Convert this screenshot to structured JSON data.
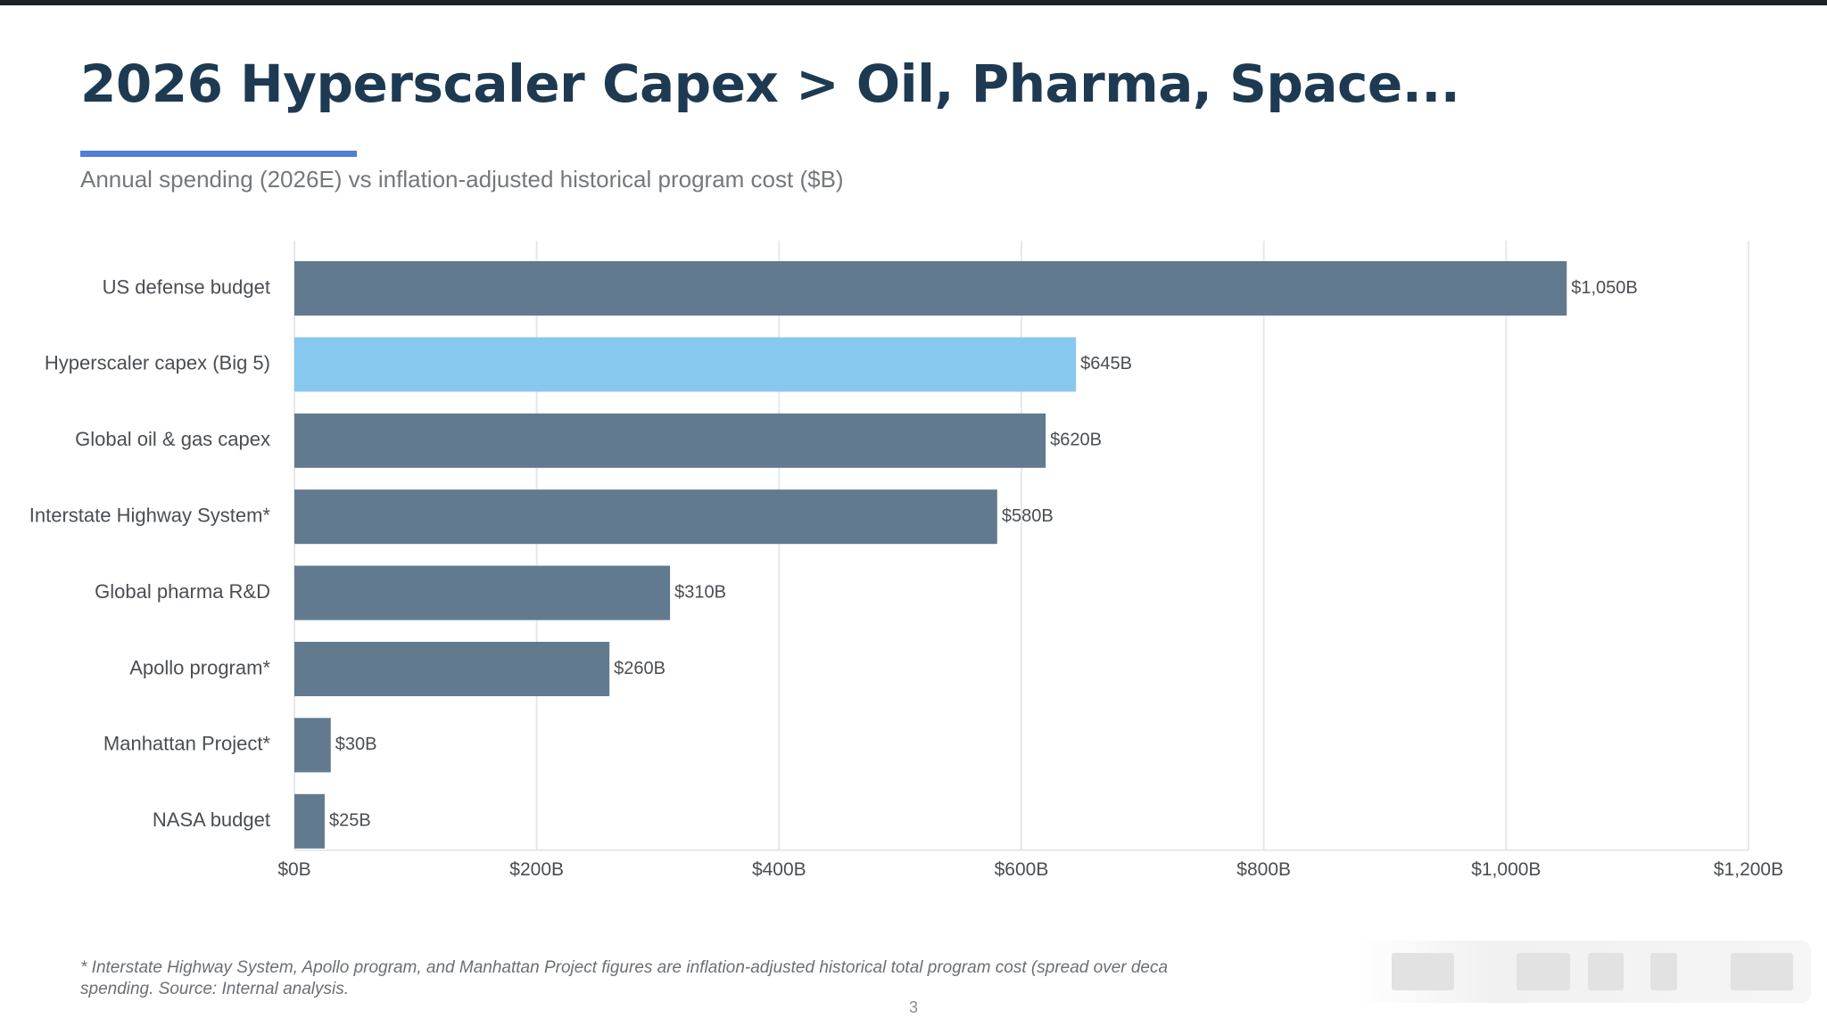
{
  "slide": {
    "title": "2026 Hyperscaler Capex > Oil, Pharma, Space...",
    "subtitle": "Annual spending (2026E) vs inflation-adjusted historical program cost ($B)",
    "footnote_line1": "* Interstate Highway System, Apollo program, and Manhattan Project figures are inflation-adjusted historical total program cost (spread over deca",
    "footnote_line2": "spending. Source: Internal analysis.",
    "page_number": "3"
  },
  "colors": {
    "title": "#1e3a52",
    "accent": "#4f7fd6",
    "bar_default": "#627a90",
    "bar_highlight": "#86c8ee",
    "grid": "#e6e8eb",
    "label": "#4a4e53"
  },
  "chart_data": {
    "type": "bar",
    "orientation": "horizontal",
    "categories": [
      "US defense budget",
      "Hyperscaler capex (Big 5)",
      "Global oil & gas capex",
      "Interstate Highway System*",
      "Global pharma R&D",
      "Apollo program*",
      "Manhattan Project*",
      "NASA budget"
    ],
    "values": [
      1050,
      645,
      620,
      580,
      310,
      260,
      30,
      25
    ],
    "value_labels": [
      "$1,050B",
      "$645B",
      "$620B",
      "$580B",
      "$310B",
      "$260B",
      "$30B",
      "$25B"
    ],
    "highlight_index": 1,
    "xlim": [
      0,
      1200
    ],
    "xticks": [
      0,
      200,
      400,
      600,
      800,
      1000,
      1200
    ],
    "xtick_labels": [
      "$0B",
      "$200B",
      "$400B",
      "$600B",
      "$800B",
      "$1,000B",
      "$1,200B"
    ],
    "grid": "vertical",
    "legend": "none"
  }
}
